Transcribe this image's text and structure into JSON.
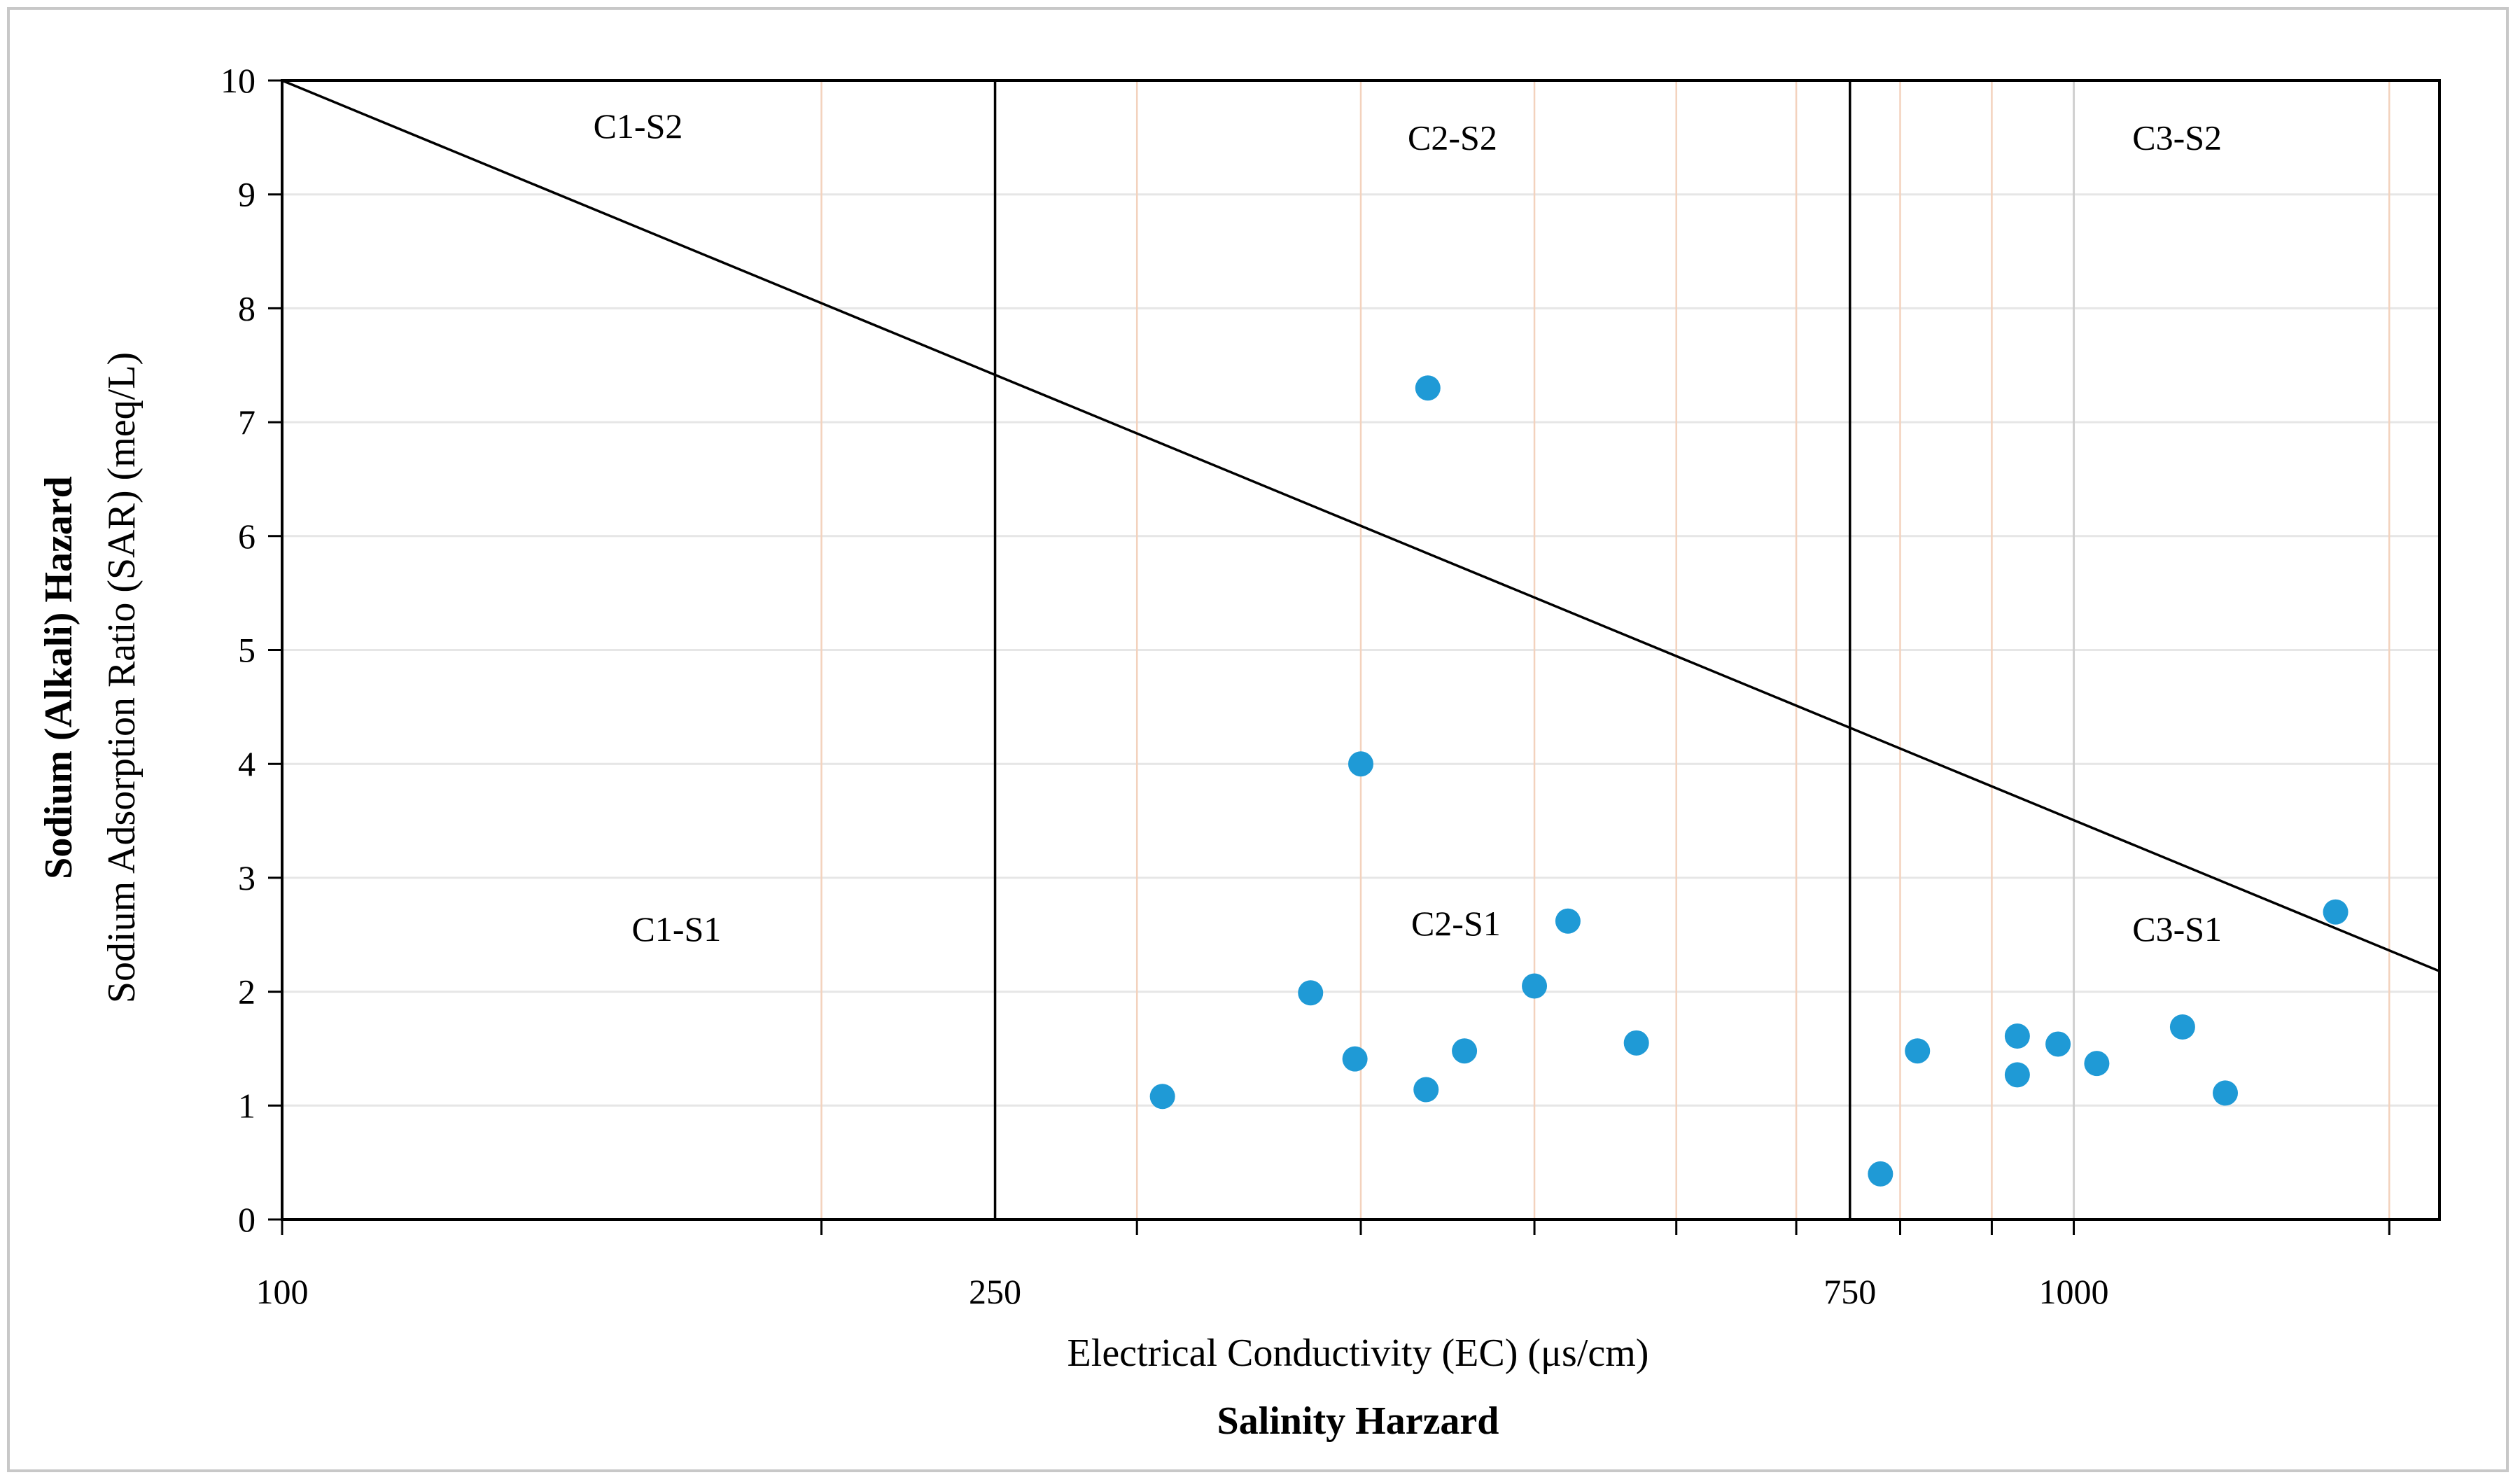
{
  "chart_data": {
    "type": "scatter",
    "x_scale": "log",
    "xlim": [
      100,
      1600
    ],
    "ylim": [
      0,
      10
    ],
    "x_axis_title": "Electrical Conductivity (EC) (μs/cm)",
    "x_axis_group_title": "Salinity Harzard",
    "y_axis_title": "Sodium Adsorption Ratio (SAR) (meq/L)",
    "y_axis_group_title": "Sodium (Alkali) Hazard",
    "x_ticks": [
      {
        "value": 100,
        "label": "100"
      },
      {
        "value": 250,
        "label": "250"
      },
      {
        "value": 750,
        "label": "750"
      },
      {
        "value": 1000,
        "label": "1000"
      }
    ],
    "x_minor_ticks": [
      200,
      300,
      400,
      500,
      600,
      700,
      800,
      900,
      1000,
      1500
    ],
    "y_ticks": [
      {
        "value": 0,
        "label": "0"
      },
      {
        "value": 1,
        "label": "1"
      },
      {
        "value": 2,
        "label": "2"
      },
      {
        "value": 3,
        "label": "3"
      },
      {
        "value": 4,
        "label": "4"
      },
      {
        "value": 5,
        "label": "5"
      },
      {
        "value": 6,
        "label": "6"
      },
      {
        "value": 7,
        "label": "7"
      },
      {
        "value": 8,
        "label": "8"
      },
      {
        "value": 9,
        "label": "9"
      },
      {
        "value": 10,
        "label": "10"
      }
    ],
    "vertical_boundaries": [
      250,
      750
    ],
    "diagonal_boundary": [
      [
        100,
        10
      ],
      [
        1600,
        2.18
      ]
    ],
    "zones": [
      {
        "label": "C1-S2",
        "x": 158,
        "y": 9.6
      },
      {
        "label": "C2-S2",
        "x": 450,
        "y": 9.5
      },
      {
        "label": "C3-S2",
        "x": 1142,
        "y": 9.5
      },
      {
        "label": "C1-S1",
        "x": 166,
        "y": 2.55
      },
      {
        "label": "C2-S1",
        "x": 452,
        "y": 2.6
      },
      {
        "label": "C3-S1",
        "x": 1142,
        "y": 2.55
      }
    ],
    "point_color": "#1f9ad6",
    "grid": true,
    "grid_color": "#f3d2bd",
    "points": [
      {
        "x": 310,
        "y": 1.08
      },
      {
        "x": 375,
        "y": 1.99
      },
      {
        "x": 397,
        "y": 1.41
      },
      {
        "x": 400,
        "y": 4.0
      },
      {
        "x": 435,
        "y": 1.14
      },
      {
        "x": 436,
        "y": 7.3
      },
      {
        "x": 457,
        "y": 1.48
      },
      {
        "x": 500,
        "y": 2.05
      },
      {
        "x": 522,
        "y": 2.62
      },
      {
        "x": 570,
        "y": 1.55
      },
      {
        "x": 780,
        "y": 0.4
      },
      {
        "x": 818,
        "y": 1.48
      },
      {
        "x": 930,
        "y": 1.61
      },
      {
        "x": 930,
        "y": 1.27
      },
      {
        "x": 980,
        "y": 1.54
      },
      {
        "x": 1030,
        "y": 1.37
      },
      {
        "x": 1150,
        "y": 1.69
      },
      {
        "x": 1215,
        "y": 1.11
      },
      {
        "x": 1400,
        "y": 2.7
      }
    ]
  }
}
